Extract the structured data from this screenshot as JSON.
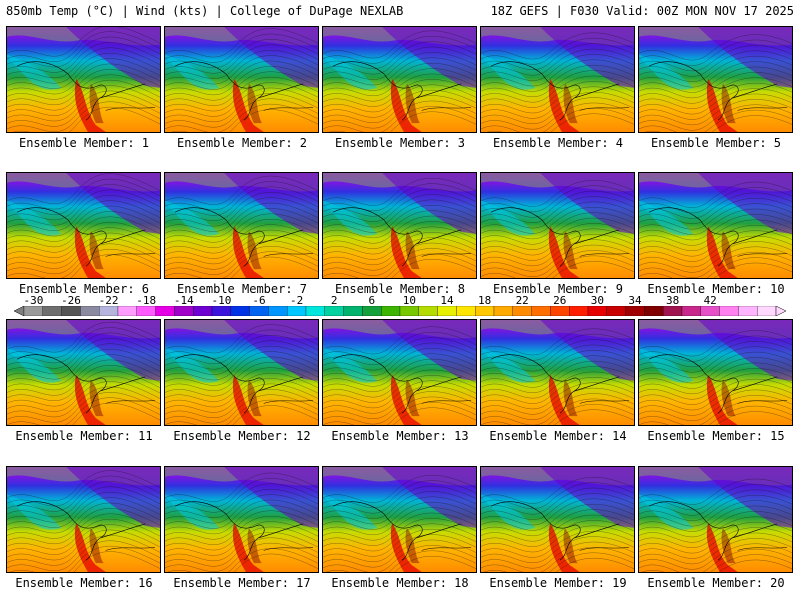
{
  "header": {
    "left": "850mb Temp (°C) | Wind (kts) | College of DuPage NEXLAB",
    "right": "18Z GEFS | F030 Valid: 00Z MON NOV 17 2025"
  },
  "panels": [
    {
      "label": "Ensemble Member: 1"
    },
    {
      "label": "Ensemble Member: 2"
    },
    {
      "label": "Ensemble Member: 3"
    },
    {
      "label": "Ensemble Member: 4"
    },
    {
      "label": "Ensemble Member: 5"
    },
    {
      "label": "Ensemble Member: 6"
    },
    {
      "label": "Ensemble Member: 7"
    },
    {
      "label": "Ensemble Member: 8"
    },
    {
      "label": "Ensemble Member: 9"
    },
    {
      "label": "Ensemble Member: 10"
    },
    {
      "label": "Ensemble Member: 11"
    },
    {
      "label": "Ensemble Member: 12"
    },
    {
      "label": "Ensemble Member: 13"
    },
    {
      "label": "Ensemble Member: 14"
    },
    {
      "label": "Ensemble Member: 15"
    },
    {
      "label": "Ensemble Member: 16"
    },
    {
      "label": "Ensemble Member: 17"
    },
    {
      "label": "Ensemble Member: 18"
    },
    {
      "label": "Ensemble Member: 19"
    },
    {
      "label": "Ensemble Member: 20"
    }
  ],
  "colorbar": {
    "ticks": [
      "-30",
      "-26",
      "-22",
      "-18",
      "-14",
      "-10",
      "-6",
      "-2",
      "2",
      "6",
      "10",
      "14",
      "18",
      "22",
      "26",
      "30",
      "34",
      "38",
      "42"
    ],
    "colors": [
      "#9a9a9a",
      "#6e6e6e",
      "#555555",
      "#8a8aa0",
      "#b4b4dc",
      "#ff9cff",
      "#ff5aff",
      "#e600e6",
      "#a000c8",
      "#6e00d2",
      "#3c14dc",
      "#0032e6",
      "#0064f0",
      "#0096ff",
      "#00c8ff",
      "#00e6dc",
      "#00d2a0",
      "#00b46e",
      "#14a03c",
      "#3cb400",
      "#78c800",
      "#b4dc00",
      "#e6f000",
      "#ffe600",
      "#ffc800",
      "#ffaa00",
      "#ff8c00",
      "#ff6e00",
      "#ff4600",
      "#ff1e00",
      "#e60000",
      "#c80000",
      "#a00000",
      "#800000",
      "#a01450",
      "#c8288c",
      "#e650c8",
      "#ff82f0",
      "#ffb4ff",
      "#ffd8ff"
    ]
  }
}
